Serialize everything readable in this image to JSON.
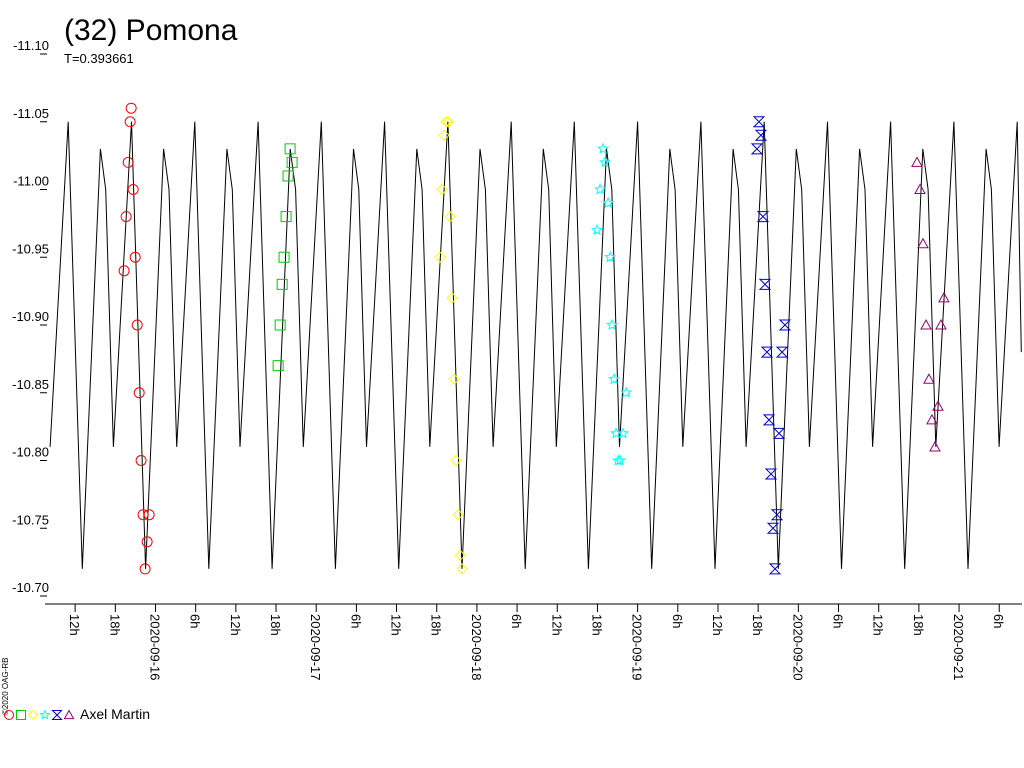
{
  "chart_data": {
    "type": "line",
    "title": "(32) Pomona",
    "subtitle": "T=0.393661",
    "credit": "©2020 OAG-RB",
    "legend_label": "Axel Martin",
    "y_inverted": true,
    "ylim": [
      -11.1,
      -10.7
    ],
    "yticks": [
      {
        "value": -11.1,
        "label": "-11.10"
      },
      -11.05,
      {
        "value": -11.0,
        "label": "-11.00"
      },
      -10.95,
      {
        "value": -10.9,
        "label": "-10.90"
      },
      -10.85,
      {
        "value": -10.8,
        "label": "-10.80"
      },
      -10.75,
      {
        "value": -10.7,
        "label": "-10.70"
      }
    ],
    "xlim": [
      "2020-09-15 07:30",
      "2020-09-21 09:24"
    ],
    "xticks": [
      {
        "value": "2020-09-15 12:00",
        "label": "12h"
      },
      {
        "value": "2020-09-15 18:00",
        "label": "18h"
      },
      {
        "value": "2020-09-16 00:00",
        "label": "2020-09-16"
      },
      {
        "value": "2020-09-16 06:00",
        "label": "6h"
      },
      {
        "value": "2020-09-16 12:00",
        "label": "12h"
      },
      {
        "value": "2020-09-16 18:00",
        "label": "18h"
      },
      {
        "value": "2020-09-17 00:00",
        "label": "2020-09-17"
      },
      {
        "value": "2020-09-17 06:00",
        "label": "6h"
      },
      {
        "value": "2020-09-17 12:00",
        "label": "12h"
      },
      {
        "value": "2020-09-17 18:00",
        "label": "18h"
      },
      {
        "value": "2020-09-18 00:00",
        "label": "2020-09-18"
      },
      {
        "value": "2020-09-18 06:00",
        "label": "6h"
      },
      {
        "value": "2020-09-18 12:00",
        "label": "12h"
      },
      {
        "value": "2020-09-18 18:00",
        "label": "18h"
      },
      {
        "value": "2020-09-19 00:00",
        "label": "2020-09-19"
      },
      {
        "value": "2020-09-19 06:00",
        "label": "6h"
      },
      {
        "value": "2020-09-19 12:00",
        "label": "12h"
      },
      {
        "value": "2020-09-19 18:00",
        "label": "18h"
      },
      {
        "value": "2020-09-20 00:00",
        "label": "2020-09-20"
      },
      {
        "value": "2020-09-20 06:00",
        "label": "6h"
      },
      {
        "value": "2020-09-20 12:00",
        "label": "12h"
      },
      {
        "value": "2020-09-20 18:00",
        "label": "18h"
      },
      {
        "value": "2020-09-21 00:00",
        "label": "2020-09-21"
      },
      {
        "value": "2020-09-21 06:00",
        "label": "6h"
      }
    ],
    "model": {
      "color": "#000000",
      "x": [
        "2020-09-15 08:16",
        "2020-09-15 10:58",
        "2020-09-15 13:04",
        "2020-09-15 15:46",
        "2020-09-15 16:34",
        "2020-09-15 17:43",
        "2020-09-15 20:25",
        "2020-09-15 22:31",
        "2020-09-16 01:13",
        "2020-09-16 02:01",
        "2020-09-16 03:10",
        "2020-09-16 05:52",
        "2020-09-16 07:58",
        "2020-09-16 10:40",
        "2020-09-16 11:28",
        "2020-09-16 12:37",
        "2020-09-16 15:19",
        "2020-09-16 17:25",
        "2020-09-16 20:07",
        "2020-09-16 20:55",
        "2020-09-16 22:04",
        "2020-09-17 00:46",
        "2020-09-17 02:52",
        "2020-09-17 05:34",
        "2020-09-17 06:22",
        "2020-09-17 07:31",
        "2020-09-17 10:13",
        "2020-09-17 12:19",
        "2020-09-17 15:01",
        "2020-09-17 15:49",
        "2020-09-17 16:58",
        "2020-09-17 19:40",
        "2020-09-17 21:46",
        "2020-09-18 00:28",
        "2020-09-18 01:16",
        "2020-09-18 02:25",
        "2020-09-18 05:07",
        "2020-09-18 07:13",
        "2020-09-18 09:55",
        "2020-09-18 10:43",
        "2020-09-18 11:51",
        "2020-09-18 14:33",
        "2020-09-18 16:39",
        "2020-09-18 19:21",
        "2020-09-18 20:09",
        "2020-09-18 21:18",
        "2020-09-19 00:00",
        "2020-09-19 02:06",
        "2020-09-19 04:48",
        "2020-09-19 05:36",
        "2020-09-19 06:45",
        "2020-09-19 09:27",
        "2020-09-19 11:33",
        "2020-09-19 14:15",
        "2020-09-19 15:03",
        "2020-09-19 16:12",
        "2020-09-19 18:54",
        "2020-09-19 21:00",
        "2020-09-19 23:42",
        "2020-09-20 00:30",
        "2020-09-20 01:39",
        "2020-09-20 04:21",
        "2020-09-20 06:27",
        "2020-09-20 09:09",
        "2020-09-20 09:57",
        "2020-09-20 11:05",
        "2020-09-20 13:47",
        "2020-09-20 15:53",
        "2020-09-20 18:35",
        "2020-09-20 19:23",
        "2020-09-20 20:32",
        "2020-09-20 23:14",
        "2020-09-21 01:20",
        "2020-09-21 04:02",
        "2020-09-21 04:50",
        "2020-09-21 05:59",
        "2020-09-21 08:41",
        "2020-09-21 09:18"
      ],
      "values": [
        -10.81,
        -11.05,
        -10.72,
        -11.03,
        -11.0,
        -10.81,
        -11.05,
        -10.72,
        -11.03,
        -11.0,
        -10.81,
        -11.05,
        -10.72,
        -11.03,
        -11.0,
        -10.81,
        -11.05,
        -10.72,
        -11.03,
        -11.0,
        -10.81,
        -11.05,
        -10.72,
        -11.03,
        -11.0,
        -10.81,
        -11.05,
        -10.72,
        -11.03,
        -11.0,
        -10.81,
        -11.05,
        -10.72,
        -11.03,
        -11.0,
        -10.81,
        -11.05,
        -10.72,
        -11.03,
        -11.0,
        -10.81,
        -11.05,
        -10.72,
        -11.03,
        -11.0,
        -10.81,
        -11.05,
        -10.72,
        -11.03,
        -11.0,
        -10.81,
        -11.05,
        -10.72,
        -11.03,
        -11.0,
        -10.81,
        -11.05,
        -10.72,
        -11.03,
        -11.0,
        -10.81,
        -11.05,
        -10.72,
        -11.03,
        -11.0,
        -10.81,
        -11.05,
        -10.72,
        -11.03,
        -11.0,
        -10.81,
        -11.05,
        -10.72,
        -11.03,
        -11.0,
        -10.81,
        -11.05,
        -10.88
      ]
    },
    "series": [
      {
        "color": "#ff0000",
        "marker": "circle",
        "x": [
          "2020-09-15 19:19",
          "2020-09-15 19:37",
          "2020-09-15 19:55",
          "2020-09-15 20:13",
          "2020-09-15 20:22",
          "2020-09-15 20:40",
          "2020-09-15 20:58",
          "2020-09-15 21:16",
          "2020-09-15 21:34",
          "2020-09-15 21:51",
          "2020-09-15 22:09",
          "2020-09-15 22:27",
          "2020-09-15 22:45",
          "2020-09-15 23:03"
        ],
        "values": [
          -10.94,
          -10.98,
          -11.02,
          -11.05,
          -11.06,
          -11.0,
          -10.95,
          -10.9,
          -10.85,
          -10.8,
          -10.76,
          -10.72,
          -10.74,
          -10.76
        ]
      },
      {
        "color": "#00cc00",
        "marker": "square",
        "x": [
          "2020-09-16 18:19",
          "2020-09-16 18:37",
          "2020-09-16 18:55",
          "2020-09-16 19:12",
          "2020-09-16 19:30",
          "2020-09-16 19:48",
          "2020-09-16 20:06",
          "2020-09-16 20:24"
        ],
        "values": [
          -10.87,
          -10.9,
          -10.93,
          -10.95,
          -10.98,
          -11.01,
          -11.03,
          -11.02
        ]
      },
      {
        "color": "#ffff00",
        "marker": "diamond",
        "x": [
          "2020-09-17 18:29",
          "2020-09-17 18:47",
          "2020-09-17 19:05",
          "2020-09-17 19:23",
          "2020-09-17 19:41",
          "2020-09-17 19:59",
          "2020-09-17 20:17",
          "2020-09-17 20:35",
          "2020-09-17 20:53",
          "2020-09-17 21:11",
          "2020-09-17 21:29",
          "2020-09-17 21:47"
        ],
        "values": [
          -10.95,
          -11.0,
          -11.04,
          -11.05,
          -11.05,
          -10.98,
          -10.92,
          -10.86,
          -10.8,
          -10.76,
          -10.73,
          -10.72
        ]
      },
      {
        "color": "#00ffff",
        "marker": "star",
        "x": [
          "2020-09-18 17:56",
          "2020-09-18 18:23",
          "2020-09-18 18:50",
          "2020-09-18 19:08",
          "2020-09-18 19:35",
          "2020-09-18 19:53",
          "2020-09-18 20:10",
          "2020-09-18 20:28",
          "2020-09-18 20:46",
          "2020-09-18 21:04",
          "2020-09-18 21:22",
          "2020-09-18 21:49",
          "2020-09-18 22:16"
        ],
        "values": [
          -10.97,
          -11.0,
          -11.03,
          -11.02,
          -10.99,
          -10.95,
          -10.9,
          -10.86,
          -10.82,
          -10.8,
          -10.8,
          -10.82,
          -10.85
        ]
      },
      {
        "color": "#0000cc",
        "marker": "bowtie",
        "x": [
          "2020-09-19 17:49",
          "2020-09-19 18:07",
          "2020-09-19 18:25",
          "2020-09-19 18:43",
          "2020-09-19 19:01",
          "2020-09-19 19:19",
          "2020-09-19 19:37",
          "2020-09-19 19:55",
          "2020-09-19 20:13",
          "2020-09-19 20:31",
          "2020-09-19 20:49",
          "2020-09-19 21:07",
          "2020-09-19 21:34",
          "2020-09-19 22:00"
        ],
        "values": [
          -11.03,
          -11.05,
          -11.04,
          -10.98,
          -10.93,
          -10.88,
          -10.83,
          -10.79,
          -10.75,
          -10.72,
          -10.76,
          -10.82,
          -10.88,
          -10.9
        ]
      },
      {
        "color": "#990066",
        "marker": "triangle",
        "x": [
          "2020-09-20 17:43",
          "2020-09-20 18:10",
          "2020-09-20 18:37",
          "2020-09-20 19:04",
          "2020-09-20 19:30",
          "2020-09-20 19:57",
          "2020-09-20 20:24",
          "2020-09-20 20:51",
          "2020-09-20 21:18",
          "2020-09-20 21:44"
        ],
        "values": [
          -11.02,
          -11.0,
          -10.96,
          -10.9,
          -10.86,
          -10.83,
          -10.81,
          -10.84,
          -10.9,
          -10.92
        ]
      }
    ]
  }
}
